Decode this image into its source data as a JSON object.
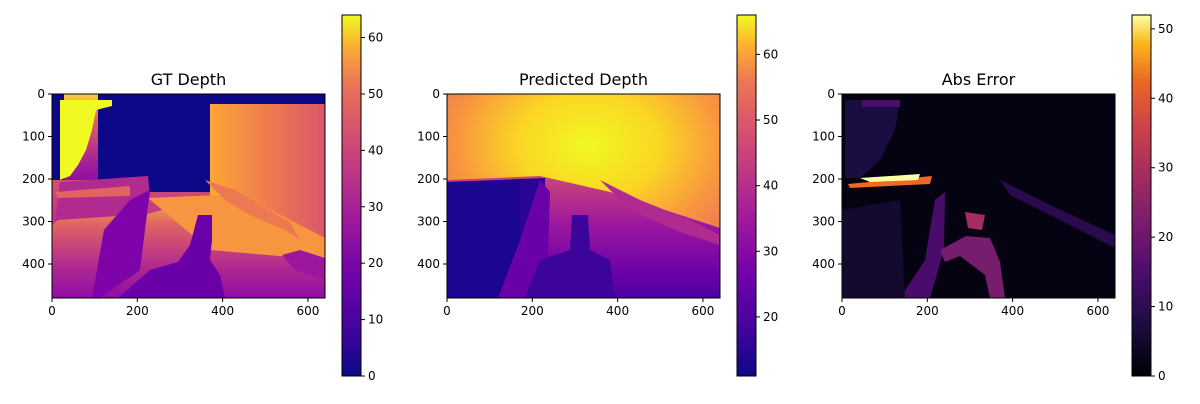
{
  "chart_data": [
    {
      "type": "heatmap",
      "title": "GT Depth",
      "colormap": "plasma",
      "xlim": [
        0,
        640
      ],
      "ylim": [
        480,
        0
      ],
      "xticks": [
        "0",
        "200",
        "400",
        "600"
      ],
      "yticks": [
        "0",
        "100",
        "200",
        "300",
        "400"
      ],
      "colorbar": {
        "range": [
          0,
          64
        ],
        "ticks": [
          "0",
          "10",
          "20",
          "30",
          "40",
          "50",
          "60"
        ]
      }
    },
    {
      "type": "heatmap",
      "title": "Predicted Depth",
      "colormap": "plasma",
      "xlim": [
        0,
        640
      ],
      "ylim": [
        480,
        0
      ],
      "xticks": [
        "0",
        "200",
        "400",
        "600"
      ],
      "yticks": [
        "0",
        "100",
        "200",
        "300",
        "400"
      ],
      "colorbar": {
        "range": [
          11,
          66
        ],
        "ticks": [
          "20",
          "30",
          "40",
          "50",
          "60"
        ]
      }
    },
    {
      "type": "heatmap",
      "title": "Abs Error",
      "colormap": "inferno",
      "xlim": [
        0,
        640
      ],
      "ylim": [
        480,
        0
      ],
      "xticks": [
        "0",
        "200",
        "400",
        "600"
      ],
      "yticks": [
        "0",
        "100",
        "200",
        "300",
        "400"
      ],
      "colorbar": {
        "range": [
          0,
          52
        ],
        "ticks": [
          "0",
          "10",
          "20",
          "30",
          "40",
          "50"
        ]
      }
    }
  ]
}
